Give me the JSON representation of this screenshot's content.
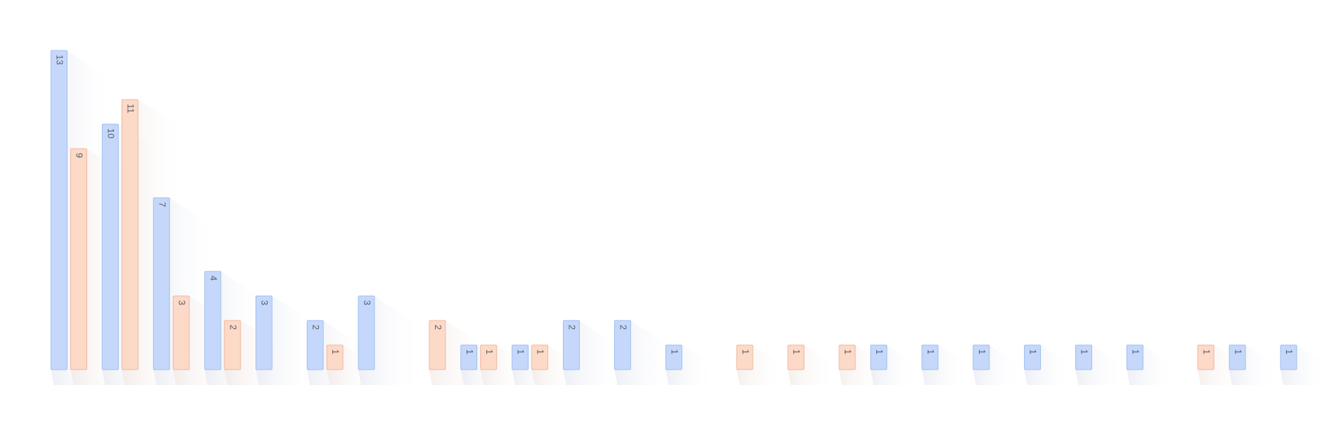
{
  "chart_data": {
    "type": "bar",
    "categories": [
      "",
      "",
      "",
      "",
      "",
      "",
      "",
      "",
      "",
      "",
      "",
      "",
      "",
      "",
      "",
      "",
      "",
      "",
      "",
      "",
      "",
      "",
      "",
      "",
      ""
    ],
    "series": [
      {
        "color": "#c5d8fb",
        "stroke": "#9fbef0",
        "values": [
          13,
          10,
          7,
          4,
          3,
          2,
          3,
          0,
          1,
          1,
          2,
          2,
          1,
          0,
          0,
          0,
          1,
          1,
          1,
          1,
          1,
          1,
          0,
          1,
          1
        ]
      },
      {
        "color": "#fdd9c7",
        "stroke": "#f0b89f",
        "values": [
          9,
          11,
          3,
          2,
          0,
          1,
          0,
          2,
          1,
          1,
          0,
          0,
          0,
          1,
          1,
          1,
          0,
          0,
          0,
          0,
          0,
          0,
          1,
          0,
          0
        ]
      }
    ],
    "ylim": [
      0,
      13
    ],
    "grid": false,
    "legend": "none",
    "data_labels": "rotated-inside-top"
  }
}
